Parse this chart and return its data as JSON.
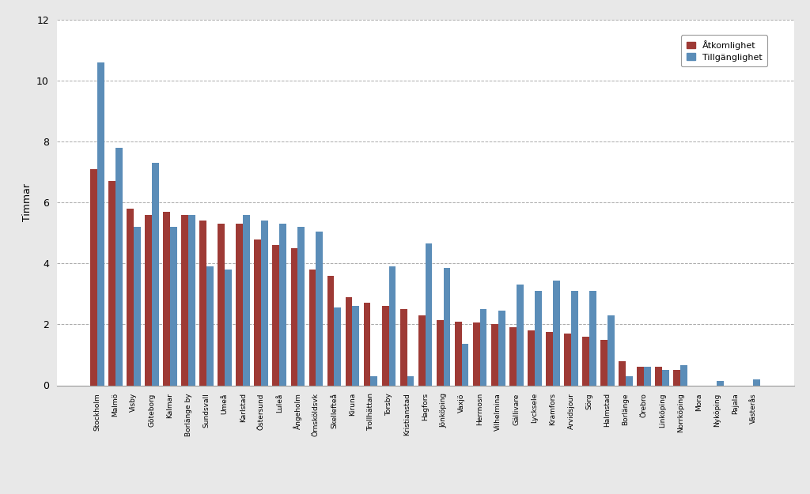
{
  "categories": [
    "Stockholm",
    "Malmö",
    "Visby",
    "Göteborg",
    "Kalmar",
    "Borlänge by",
    "Sundsvall",
    "Umeå",
    "Karlstad",
    "Östersund",
    "Luleå",
    "Ångeholm",
    "Örnsköldsvk",
    "Skellefteå",
    "Kiruna",
    "Trollhättan",
    "Torsby",
    "Kristianstad",
    "Hagfors",
    "Jönköping",
    "Vaxjö",
    "Herrnosn",
    "Vilhelmina",
    "Gällivare",
    "Lycksele",
    "Kramfors",
    "Arvidsjour",
    "Sörg",
    "Halmstad",
    "Borlänge",
    "Örebro",
    "Linköping",
    "Norrköping",
    "Mora",
    "Nyköping",
    "Pajala",
    "Västerås"
  ],
  "atkomlighet": [
    7.1,
    6.7,
    5.8,
    5.6,
    5.7,
    5.6,
    5.4,
    5.3,
    5.3,
    4.8,
    4.6,
    4.5,
    3.8,
    3.6,
    2.9,
    2.7,
    2.6,
    2.5,
    2.3,
    2.15,
    2.1,
    2.05,
    2.0,
    1.9,
    1.8,
    1.75,
    1.7,
    1.6,
    1.5,
    0.8,
    0.6,
    0.6,
    0.5,
    0.0,
    0.0,
    0.0,
    0.0
  ],
  "tillganglighet": [
    10.6,
    7.8,
    5.2,
    7.3,
    5.2,
    5.6,
    3.9,
    3.8,
    5.6,
    5.4,
    5.3,
    5.2,
    5.05,
    2.55,
    2.6,
    0.3,
    3.9,
    0.3,
    4.65,
    3.85,
    1.35,
    2.5,
    2.45,
    3.3,
    3.1,
    3.45,
    3.1,
    3.1,
    2.3,
    0.3,
    0.6,
    0.5,
    0.65,
    0.0,
    0.15,
    0.0,
    0.2
  ],
  "color_atkomlighet": "#9E3A35",
  "color_tillganglighet": "#5B8DB8",
  "ylabel": "Timmar",
  "ylim": [
    0,
    12
  ],
  "yticks": [
    0,
    2,
    4,
    6,
    8,
    10,
    12
  ],
  "legend_atkomlighet": "Åtkomlighet",
  "legend_tillganglighet": "Tillgänglighet",
  "background_color": "#E8E8E8",
  "plot_background": "#FFFFFF",
  "bar_width": 0.38,
  "figsize": [
    10.24,
    6.25
  ],
  "dpi": 100
}
